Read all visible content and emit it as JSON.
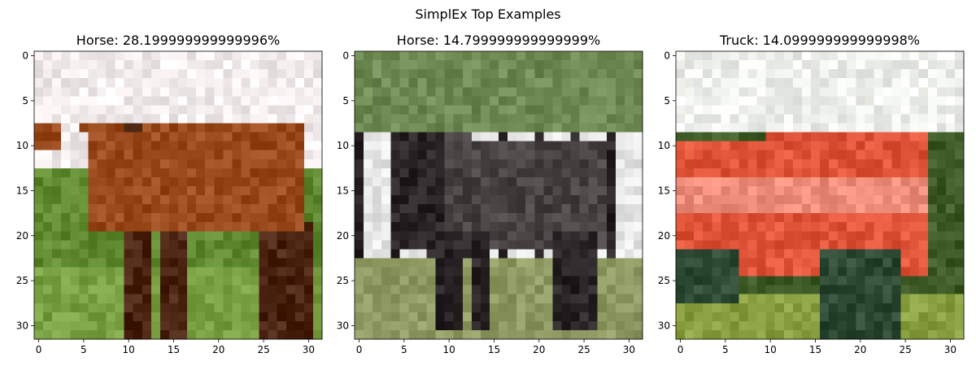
{
  "figure": {
    "suptitle": "SimplEx Top Examples"
  },
  "chart_data": [
    {
      "type": "image",
      "title": "Horse: 28.199999999999996%",
      "xlim": [
        -0.5,
        31.5
      ],
      "ylim": [
        31.5,
        -0.5
      ],
      "xticks": [
        0,
        5,
        10,
        15,
        20,
        25,
        30
      ],
      "yticks": [
        0,
        5,
        10,
        15,
        20,
        25,
        30
      ],
      "image_description_colors": {
        "sky": "#f3ecec",
        "horse_body": "#9a4a1c",
        "horse_dark": "#4a2410",
        "grass": "#5f8a30",
        "grass_light": "#7aa044"
      }
    },
    {
      "type": "image",
      "title": "Horse: 14.799999999999999%",
      "xlim": [
        -0.5,
        31.5
      ],
      "ylim": [
        31.5,
        -0.5
      ],
      "xticks": [
        0,
        5,
        10,
        15,
        20,
        25,
        30
      ],
      "yticks": [
        0,
        5,
        10,
        15,
        20,
        25,
        30
      ],
      "image_description_colors": {
        "trees": "#6f8a52",
        "fence": "#e6e6e6",
        "horse": "#4a4344",
        "horse_dark": "#2a2426",
        "ground": "#8e9a62"
      }
    },
    {
      "type": "image",
      "title": "Truck: 14.099999999999998%",
      "xlim": [
        -0.5,
        31.5
      ],
      "ylim": [
        31.5,
        -0.5
      ],
      "xticks": [
        0,
        5,
        10,
        15,
        20,
        25,
        30
      ],
      "yticks": [
        0,
        5,
        10,
        15,
        20,
        25,
        30
      ],
      "image_description_colors": {
        "sky": "#eef0ec",
        "truck_red": "#e0543a",
        "truck_light": "#ef8e7a",
        "wheel": "#2e4a34",
        "grass": "#8aa040",
        "grass_dark": "#3e5a26"
      }
    }
  ]
}
